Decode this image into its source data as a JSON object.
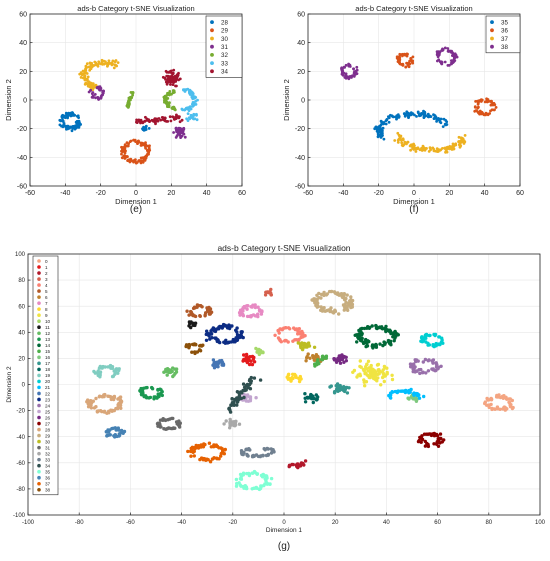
{
  "chart_data": [
    {
      "panel_label": "(e)",
      "type": "scatter",
      "title": "ads-b Category t-SNE Visualization",
      "xlabel": "Dimension 1",
      "ylabel": "Dimension 2",
      "xlim": [
        -60,
        60
      ],
      "ylim": [
        -60,
        60
      ],
      "xticks": [
        -60,
        -40,
        -20,
        0,
        20,
        40,
        60
      ],
      "yticks": [
        -60,
        -40,
        -20,
        0,
        20,
        40,
        60
      ],
      "grid": true,
      "legend_position": "top-right",
      "series": [
        {
          "name": "28",
          "color": "#0072BD",
          "clusters": [
            {
              "shape": "ring",
              "cx": -37,
              "cy": -15,
              "r": 5,
              "spread": 1.6,
              "n": 90
            },
            {
              "shape": "blob",
              "cx": 5,
              "cy": -20,
              "r": 2,
              "n": 10
            }
          ]
        },
        {
          "name": "29",
          "color": "#D95319",
          "clusters": [
            {
              "shape": "ring",
              "cx": 0,
              "cy": -36,
              "r": 7,
              "spread": 1.6,
              "n": 110
            }
          ]
        },
        {
          "name": "30",
          "color": "#EDB120",
          "clusters": [
            {
              "shape": "arc",
              "cx": -17,
              "cy": 17,
              "rx": 12,
              "ry": 9,
              "a0": 60,
              "a1": 250,
              "spread": 2,
              "n": 110
            }
          ]
        },
        {
          "name": "31",
          "color": "#7E2F8E",
          "clusters": [
            {
              "shape": "ring",
              "cx": -22,
              "cy": 5,
              "r": 3.5,
              "spread": 1.2,
              "n": 40
            },
            {
              "shape": "blob",
              "cx": 25,
              "cy": -22,
              "r": 4,
              "n": 40
            }
          ]
        },
        {
          "name": "32",
          "color": "#77AC30",
          "clusters": [
            {
              "shape": "line",
              "x0": -5,
              "y0": -5,
              "x1": -2,
              "y1": 5,
              "spread": 1,
              "n": 30
            },
            {
              "shape": "arc",
              "cx": 22,
              "cy": 0,
              "rx": 5,
              "ry": 6,
              "a0": 90,
              "a1": 270,
              "spread": 1.3,
              "n": 50
            }
          ]
        },
        {
          "name": "33",
          "color": "#4DBEEE",
          "clusters": [
            {
              "shape": "arc",
              "cx": 27,
              "cy": 0,
              "rx": 6,
              "ry": 7,
              "a0": -90,
              "a1": 90,
              "spread": 1.3,
              "n": 60
            },
            {
              "shape": "blob",
              "cx": 32,
              "cy": -12,
              "r": 3,
              "n": 20
            }
          ]
        },
        {
          "name": "34",
          "color": "#A2142F",
          "clusters": [
            {
              "shape": "blob",
              "cx": 20,
              "cy": 15,
              "r": 5,
              "n": 80
            },
            {
              "shape": "line",
              "x0": 0,
              "y0": -15,
              "x1": 25,
              "y1": -12,
              "spread": 2,
              "n": 60
            }
          ]
        }
      ]
    },
    {
      "panel_label": "(f)",
      "type": "scatter",
      "title": "ads-b Category t-SNE Visualization",
      "xlabel": "Dimension 1",
      "ylabel": "Dimension 2",
      "xlim": [
        -60,
        60
      ],
      "ylim": [
        -60,
        60
      ],
      "xticks": [
        -60,
        -40,
        -20,
        0,
        20,
        40,
        60
      ],
      "yticks": [
        -60,
        -40,
        -20,
        0,
        20,
        40,
        60
      ],
      "grid": true,
      "legend_position": "top-right",
      "series": [
        {
          "name": "35",
          "color": "#0072BD",
          "clusters": [
            {
              "shape": "arc",
              "cx": 0,
              "cy": -22,
              "rx": 20,
              "ry": 12,
              "a0": 20,
              "a1": 200,
              "spread": 2.2,
              "n": 140
            }
          ]
        },
        {
          "name": "36",
          "color": "#D95319",
          "clusters": [
            {
              "shape": "ring",
              "cx": -5,
              "cy": 28,
              "r": 4,
              "spread": 1.2,
              "n": 50
            },
            {
              "shape": "ring",
              "cx": 40,
              "cy": -5,
              "r": 5,
              "spread": 1.4,
              "n": 60
            }
          ]
        },
        {
          "name": "37",
          "color": "#EDB120",
          "clusters": [
            {
              "shape": "arc",
              "cx": 10,
              "cy": -25,
              "rx": 18,
              "ry": 10,
              "a0": 180,
              "a1": 360,
              "spread": 2.2,
              "n": 120
            }
          ]
        },
        {
          "name": "38",
          "color": "#7E2F8E",
          "clusters": [
            {
              "shape": "ring",
              "cx": -37,
              "cy": 20,
              "r": 4,
              "spread": 1.2,
              "n": 50
            },
            {
              "shape": "ring",
              "cx": 18,
              "cy": 30,
              "r": 5,
              "spread": 1.4,
              "n": 60
            }
          ]
        }
      ]
    },
    {
      "panel_label": "(g)",
      "type": "scatter",
      "title": "ads-b Category t-SNE Visualization",
      "xlabel": "Dimension 1",
      "ylabel": "Dimension 2",
      "xlim": [
        -100,
        100
      ],
      "ylim": [
        -100,
        100
      ],
      "xticks": [
        -100,
        -80,
        -60,
        -40,
        -20,
        0,
        20,
        40,
        60,
        80,
        100
      ],
      "yticks": [
        -100,
        -80,
        -60,
        -40,
        -20,
        0,
        20,
        40,
        60,
        80,
        100
      ],
      "grid": true,
      "legend_position": "top-left",
      "series": [
        {
          "name": "0",
          "color": "#f4a582",
          "clusters": [
            {
              "shape": "ring",
              "cx": 84,
              "cy": -14,
              "r": 5,
              "spread": 1.4,
              "n": 50
            }
          ]
        },
        {
          "name": "1",
          "color": "#e41a1c",
          "clusters": [
            {
              "shape": "blob",
              "cx": -14,
              "cy": 19,
              "r": 3,
              "n": 25
            }
          ]
        },
        {
          "name": "2",
          "color": "#b2182b",
          "clusters": [
            {
              "shape": "blob",
              "cx": 6,
              "cy": -62,
              "r": 3,
              "n": 20
            }
          ]
        },
        {
          "name": "3",
          "color": "#d6604d",
          "clusters": [
            {
              "shape": "blob",
              "cx": -6,
              "cy": 70,
              "r": 2,
              "n": 15
            }
          ]
        },
        {
          "name": "4",
          "color": "#fb8072",
          "clusters": [
            {
              "shape": "ring",
              "cx": 2,
              "cy": 38,
              "r": 5,
              "spread": 1.3,
              "n": 50
            }
          ]
        },
        {
          "name": "5",
          "color": "#b15928",
          "clusters": [
            {
              "shape": "ring",
              "cx": -33,
              "cy": 56,
              "r": 4,
              "spread": 1.2,
              "n": 40
            }
          ]
        },
        {
          "name": "6",
          "color": "#bf812d",
          "clusters": [
            {
              "shape": "blob",
              "cx": 12,
              "cy": 20,
              "r": 3,
              "n": 20
            }
          ]
        },
        {
          "name": "7",
          "color": "#e78ac3",
          "clusters": [
            {
              "shape": "ring",
              "cx": -13,
              "cy": 56,
              "r": 4,
              "spread": 1.2,
              "n": 40
            }
          ]
        },
        {
          "name": "8",
          "color": "#ffd92f",
          "clusters": [
            {
              "shape": "blob",
              "cx": 4,
              "cy": 5,
              "r": 3,
              "n": 20
            }
          ]
        },
        {
          "name": "9",
          "color": "#f0e442",
          "clusters": [
            {
              "shape": "blob",
              "cx": 35,
              "cy": 8,
              "r": 7,
              "n": 90
            }
          ]
        },
        {
          "name": "10",
          "color": "#a6d96a",
          "clusters": [
            {
              "shape": "blob",
              "cx": -10,
              "cy": 25,
              "r": 2,
              "n": 15
            }
          ]
        },
        {
          "name": "11",
          "color": "#1a1a1a",
          "clusters": [
            {
              "shape": "blob",
              "cx": -36,
              "cy": 46,
              "r": 2,
              "n": 10
            }
          ]
        },
        {
          "name": "12",
          "color": "#66bd63",
          "clusters": [
            {
              "shape": "blob",
              "cx": -45,
              "cy": 10,
              "r": 3,
              "n": 20
            }
          ]
        },
        {
          "name": "13",
          "color": "#1a9850",
          "clusters": [
            {
              "shape": "ring",
              "cx": -52,
              "cy": -6,
              "r": 4,
              "spread": 1.2,
              "n": 40
            }
          ]
        },
        {
          "name": "14",
          "color": "#006837",
          "clusters": [
            {
              "shape": "ring",
              "cx": 36,
              "cy": 37,
              "r": 7,
              "spread": 1.8,
              "n": 90
            }
          ]
        },
        {
          "name": "15",
          "color": "#4daf4a",
          "clusters": [
            {
              "shape": "line",
              "x0": 12,
              "y0": 15,
              "x1": 16,
              "y1": 22,
              "spread": 1,
              "n": 20
            }
          ]
        },
        {
          "name": "16",
          "color": "#7fc97f",
          "clusters": [
            {
              "shape": "blob",
              "cx": 50,
              "cy": -10,
              "r": 3,
              "n": 20
            }
          ]
        },
        {
          "name": "17",
          "color": "#35978f",
          "clusters": [
            {
              "shape": "blob",
              "cx": 22,
              "cy": -3,
              "r": 4,
              "n": 30
            }
          ]
        },
        {
          "name": "18",
          "color": "#01665e",
          "clusters": [
            {
              "shape": "blob",
              "cx": 11,
              "cy": -10,
              "r": 3,
              "n": 25
            }
          ]
        },
        {
          "name": "19",
          "color": "#80cdc1",
          "clusters": [
            {
              "shape": "ring",
              "cx": -69,
              "cy": 10,
              "r": 4,
              "spread": 1.2,
              "n": 40
            }
          ]
        },
        {
          "name": "20",
          "color": "#00ced1",
          "clusters": [
            {
              "shape": "ring",
              "cx": 58,
              "cy": 34,
              "r": 4,
              "spread": 1.2,
              "n": 40
            }
          ]
        },
        {
          "name": "21",
          "color": "#00bfff",
          "clusters": [
            {
              "shape": "arc",
              "cx": 47,
              "cy": -10,
              "rx": 6,
              "ry": 5,
              "a0": 0,
              "a1": 180,
              "spread": 1.3,
              "n": 40
            }
          ]
        },
        {
          "name": "22",
          "color": "#4575b4",
          "clusters": [
            {
              "shape": "blob",
              "cx": -26,
              "cy": 16,
              "r": 3,
              "n": 20
            }
          ]
        },
        {
          "name": "23",
          "color": "#0c2c84",
          "clusters": [
            {
              "shape": "ring",
              "cx": -23,
              "cy": 38,
              "r": 6,
              "spread": 1.8,
              "n": 80
            }
          ]
        },
        {
          "name": "24",
          "color": "#9970ab",
          "clusters": [
            {
              "shape": "ring",
              "cx": 55,
              "cy": 14,
              "r": 5,
              "spread": 1.3,
              "n": 50
            }
          ]
        },
        {
          "name": "25",
          "color": "#c2a5cf",
          "clusters": [
            {
              "shape": "blob",
              "cx": -15,
              "cy": -10,
              "r": 3,
              "n": 25
            }
          ]
        },
        {
          "name": "26",
          "color": "#762a83",
          "clusters": [
            {
              "shape": "blob",
              "cx": 22,
              "cy": 20,
              "r": 3,
              "n": 25
            }
          ]
        },
        {
          "name": "27",
          "color": "#8b0000",
          "clusters": [
            {
              "shape": "ring",
              "cx": 57,
              "cy": -42,
              "r": 4,
              "spread": 1.2,
              "n": 40
            }
          ]
        },
        {
          "name": "28",
          "color": "#d9a679",
          "clusters": [
            {
              "shape": "ring",
              "cx": -70,
              "cy": -15,
              "r": 6,
              "spread": 1.5,
              "n": 60
            }
          ]
        },
        {
          "name": "29",
          "color": "#c7ad7f",
          "clusters": [
            {
              "shape": "ring",
              "cx": 19,
              "cy": 63,
              "r": 7,
              "spread": 1.8,
              "n": 90
            }
          ]
        },
        {
          "name": "30",
          "color": "#bcbd22",
          "clusters": [
            {
              "shape": "blob",
              "cx": 7,
              "cy": 30,
              "r": 3,
              "n": 20
            }
          ]
        },
        {
          "name": "31",
          "color": "#696969",
          "clusters": [
            {
              "shape": "ring",
              "cx": -45,
              "cy": -30,
              "r": 4,
              "spread": 1.2,
              "n": 40
            }
          ]
        },
        {
          "name": "32",
          "color": "#a9a9a9",
          "clusters": [
            {
              "shape": "blob",
              "cx": -20,
              "cy": -30,
              "r": 3,
              "n": 25
            }
          ]
        },
        {
          "name": "33",
          "color": "#708090",
          "clusters": [
            {
              "shape": "arc",
              "cx": -10,
              "cy": -52,
              "rx": 6,
              "ry": 3,
              "a0": 0,
              "a1": 360,
              "spread": 1,
              "n": 40
            }
          ]
        },
        {
          "name": "34",
          "color": "#2f4f4f",
          "clusters": [
            {
              "shape": "line",
              "x0": -22,
              "y0": -20,
              "x1": -12,
              "y1": 5,
              "spread": 2,
              "n": 50
            }
          ]
        },
        {
          "name": "35",
          "color": "#7fffd4",
          "clusters": [
            {
              "shape": "ring",
              "cx": -12,
              "cy": -74,
              "r": 6,
              "spread": 1.5,
              "n": 60
            }
          ]
        },
        {
          "name": "36",
          "color": "#4682b4",
          "clusters": [
            {
              "shape": "ring",
              "cx": -66,
              "cy": -37,
              "r": 3,
              "spread": 1,
              "n": 30
            }
          ]
        },
        {
          "name": "37",
          "color": "#e66101",
          "clusters": [
            {
              "shape": "ring",
              "cx": -30,
              "cy": -52,
              "r": 6,
              "spread": 1.5,
              "n": 60
            }
          ]
        },
        {
          "name": "38",
          "color": "#8c510a",
          "clusters": [
            {
              "shape": "ring",
              "cx": -35,
              "cy": 28,
              "r": 3,
              "spread": 1,
              "n": 25
            }
          ]
        }
      ]
    }
  ]
}
